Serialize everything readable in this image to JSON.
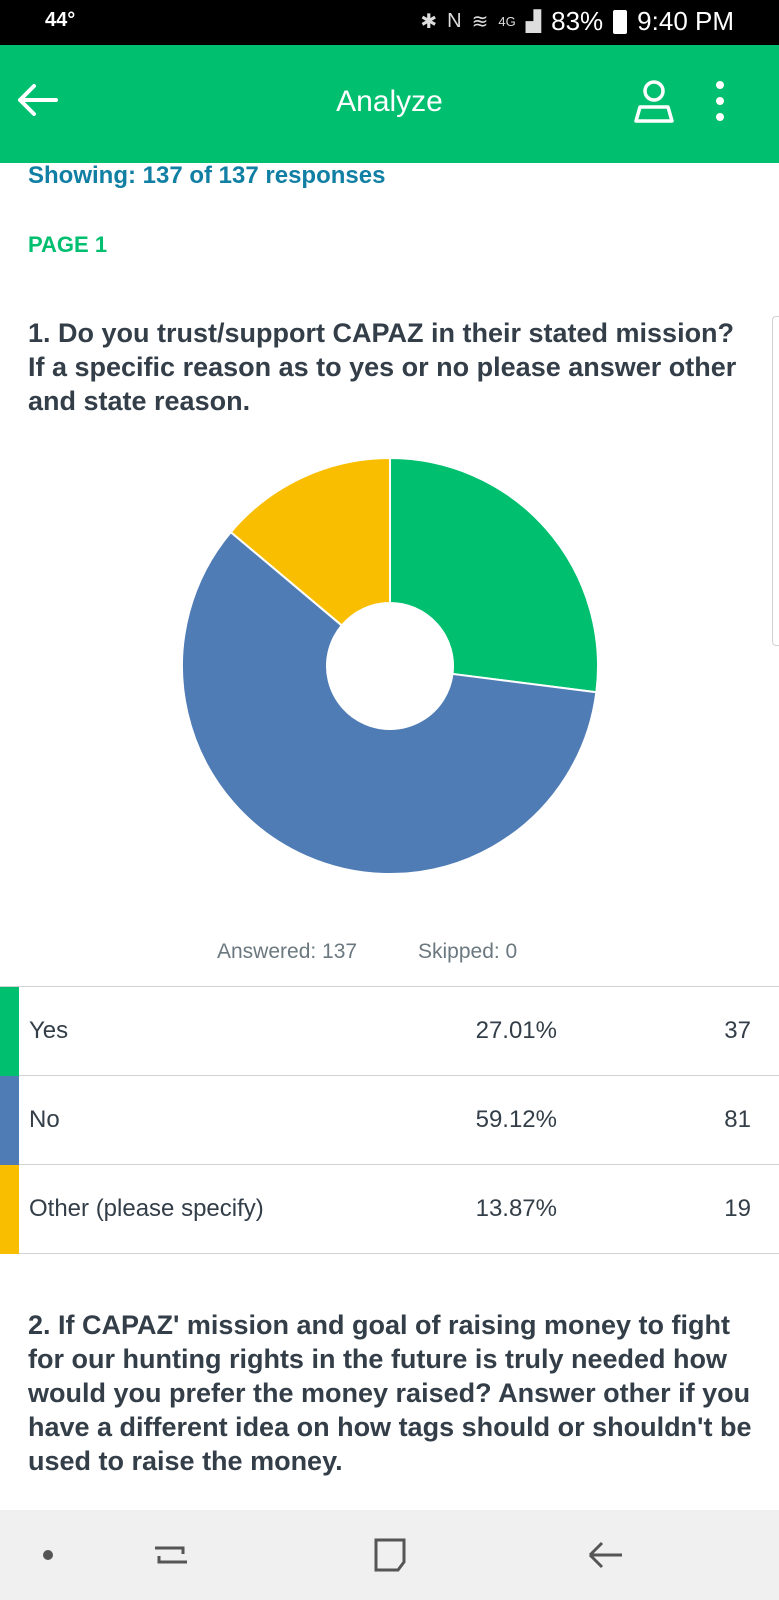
{
  "status_bar": {
    "temperature": "44°",
    "battery": "83%",
    "time": "9:40 PM",
    "icons": [
      "bluetooth-icon",
      "nfc-icon",
      "wifi-icon",
      "lte-icon",
      "signal-icon",
      "battery-icon"
    ],
    "network": "4G"
  },
  "app_bar": {
    "title": "Analyze",
    "color": "#00bf6f",
    "icons": [
      "back-arrow-icon",
      "user-icon",
      "more-vert-icon"
    ]
  },
  "showing_text": "Showing: 137 of 137 responses",
  "page_label": "PAGE 1",
  "question1": {
    "text": "1. Do you trust/support CAPAZ in their stated mission? If a specific reason as to yes or no please answer other and state reason.",
    "answered": "Answered: 137",
    "skipped": "Skipped: 0",
    "rows": [
      {
        "label": "Yes",
        "percent": "27.01%",
        "count": "37",
        "color": "#00bf6f"
      },
      {
        "label": "No",
        "percent": "59.12%",
        "count": "81",
        "color": "#507cb6"
      },
      {
        "label": "Other (please specify)",
        "percent": "13.87%",
        "count": "19",
        "color": "#f9be00"
      }
    ]
  },
  "chart_data": {
    "type": "pie",
    "categories": [
      "Yes",
      "No",
      "Other (please specify)"
    ],
    "values": [
      27.01,
      59.12,
      13.87
    ],
    "colors": [
      "#00bf6f",
      "#507cb6",
      "#f9be00"
    ],
    "donut": true
  },
  "question2": {
    "text": "2. If CAPAZ' mission and goal of raising money to fight for our hunting rights in the future is truly needed how would you prefer the money raised? Answer other if you have a different idea on how tags should or shouldn't be used to raise the money."
  },
  "nav_bar": {
    "icons": [
      "dot-icon",
      "recents-icon",
      "home-icon",
      "back-icon"
    ]
  }
}
